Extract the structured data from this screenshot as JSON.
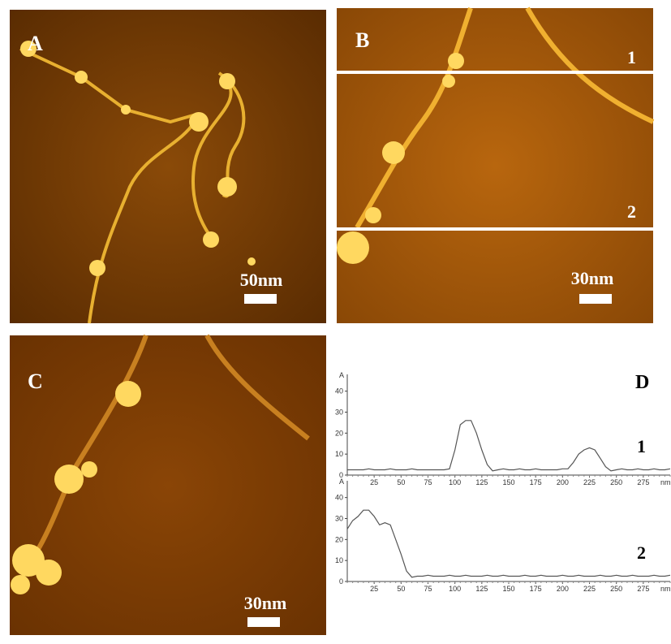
{
  "panels": [
    {
      "label": "A",
      "scale_bar": "50nm"
    },
    {
      "label": "B",
      "scale_bar": "30nm",
      "line_labels": [
        "1",
        "2"
      ]
    },
    {
      "label": "C",
      "scale_bar": "30nm"
    }
  ],
  "profile_label": "D",
  "chart_data": [
    {
      "type": "line",
      "ylabel": "A",
      "xlabel": "nm",
      "annotation": "1",
      "color": "#555555",
      "x": [
        0,
        5,
        10,
        15,
        20,
        25,
        30,
        35,
        40,
        45,
        50,
        55,
        60,
        65,
        70,
        75,
        80,
        85,
        90,
        95,
        100,
        105,
        110,
        115,
        120,
        125,
        130,
        135,
        140,
        145,
        150,
        155,
        160,
        165,
        170,
        175,
        180,
        185,
        190,
        195,
        200,
        205,
        210,
        215,
        220,
        225,
        230,
        235,
        240,
        245,
        250,
        255,
        260,
        265,
        270,
        275,
        280,
        285,
        290,
        295,
        300
      ],
      "values": [
        2.5,
        2.5,
        2.5,
        2.5,
        3,
        2.5,
        2.5,
        2.5,
        3,
        2.5,
        2.5,
        2.5,
        3,
        2.5,
        2.5,
        2.5,
        2.5,
        2.5,
        2.5,
        3,
        12,
        24,
        26,
        26,
        20,
        12,
        5,
        2,
        2.5,
        3,
        2.5,
        2.5,
        3,
        2.5,
        2.5,
        3,
        2.5,
        2.5,
        2.5,
        2.5,
        3,
        3,
        6,
        10,
        12,
        13,
        12,
        8,
        4,
        2,
        2.5,
        3,
        2.5,
        2.5,
        3,
        2.5,
        2.5,
        3,
        2.5,
        2.5,
        3
      ],
      "xlim": [
        0,
        300
      ],
      "ylim": [
        0,
        48
      ],
      "xticks": [
        25,
        50,
        75,
        100,
        125,
        150,
        175,
        200,
        225,
        250,
        275
      ],
      "yticks": [
        0,
        10,
        20,
        30,
        40
      ]
    },
    {
      "type": "line",
      "ylabel": "A",
      "xlabel": "nm",
      "annotation": "2",
      "color": "#555555",
      "x": [
        0,
        5,
        10,
        15,
        20,
        25,
        30,
        35,
        40,
        45,
        50,
        55,
        60,
        65,
        70,
        75,
        80,
        85,
        90,
        95,
        100,
        105,
        110,
        115,
        120,
        125,
        130,
        135,
        140,
        145,
        150,
        155,
        160,
        165,
        170,
        175,
        180,
        185,
        190,
        195,
        200,
        205,
        210,
        215,
        220,
        225,
        230,
        235,
        240,
        245,
        250,
        255,
        260,
        265,
        270,
        275,
        280,
        285,
        290,
        295,
        300
      ],
      "values": [
        25,
        29,
        31,
        34,
        34,
        31,
        27,
        28,
        27,
        20,
        13,
        5,
        2,
        2.5,
        2.5,
        3,
        2.5,
        2.5,
        2.5,
        3,
        2.5,
        2.5,
        3,
        2.5,
        2.5,
        2.5,
        3,
        2.5,
        2.5,
        3,
        2.5,
        2.5,
        2.5,
        3,
        2.5,
        2.5,
        3,
        2.5,
        2.5,
        2.5,
        3,
        2.5,
        2.5,
        3,
        2.5,
        2.5,
        2.5,
        3,
        2.5,
        2.5,
        3,
        2.5,
        2.5,
        3,
        2.5,
        2.5,
        2.5,
        3,
        2.5,
        2.5,
        3
      ],
      "xlim": [
        0,
        300
      ],
      "ylim": [
        0,
        48
      ],
      "xticks": [
        25,
        50,
        75,
        100,
        125,
        150,
        175,
        200,
        225,
        250,
        275
      ],
      "yticks": [
        0,
        10,
        20,
        30,
        40
      ]
    }
  ]
}
